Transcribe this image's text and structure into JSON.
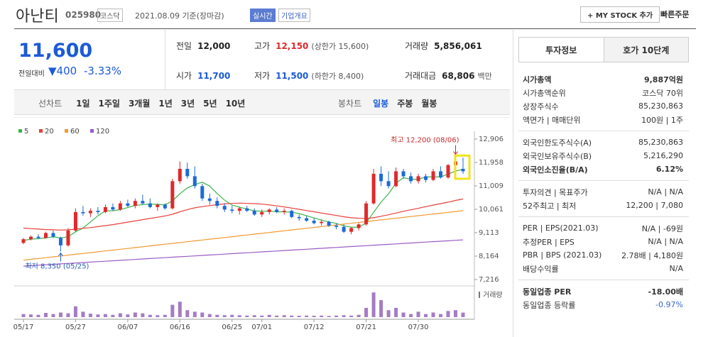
{
  "header": {
    "name": "아난티",
    "code": "025980",
    "market": "코스닥",
    "date": "2021.08.09 기준(장마감)",
    "realtime": "실시간",
    "overview": "기업개요",
    "mystock": "+ MY STOCK 추가",
    "quick_order": "빠른주문"
  },
  "price": {
    "current": "11,600",
    "change_label": "전일대비",
    "change": "▼400",
    "change_rate": "-3.33%"
  },
  "quote": {
    "rows": [
      [
        {
          "label": "전일",
          "value": "12,000"
        },
        {
          "label": "고가",
          "value": "12,150",
          "note": "(상한가 15,600)"
        },
        {
          "label": "거래량",
          "value": "5,856,061"
        }
      ],
      [
        {
          "label": "시가",
          "value": "11,700"
        },
        {
          "label": "저가",
          "value": "11,500",
          "note": "(하한가 8,400)"
        },
        {
          "label": "거래대금",
          "value": "68,806",
          "note": "백만"
        }
      ]
    ]
  },
  "period_tabs": [
    "선차트",
    "1일",
    "1주일",
    "3개월",
    "1년",
    "3년",
    "5년",
    "10년"
  ],
  "candle_tabs": [
    "봉차트",
    "일봉",
    "주봉",
    "월봉"
  ],
  "chart_data": {
    "type": "candlestick",
    "categories": [
      "05/17",
      null,
      null,
      null,
      null,
      null,
      null,
      "05/27",
      null,
      null,
      null,
      null,
      null,
      null,
      "06/07",
      null,
      null,
      null,
      null,
      null,
      null,
      "06/16",
      null,
      null,
      null,
      null,
      null,
      null,
      "06/25",
      null,
      null,
      null,
      "07/01",
      null,
      null,
      null,
      null,
      null,
      null,
      "07/12",
      null,
      null,
      null,
      null,
      null,
      null,
      "07/21",
      null,
      null,
      null,
      null,
      null,
      null,
      "07/30",
      null,
      null,
      null,
      null,
      null,
      null
    ],
    "open": [
      8700,
      8850,
      8950,
      8900,
      9100,
      8900,
      8600,
      9200,
      9950,
      9900,
      10000,
      9950,
      10150,
      10050,
      10300,
      10200,
      10400,
      10300,
      10150,
      10250,
      10100,
      11200,
      11700,
      11400,
      11000,
      10500,
      10400,
      10200,
      10050,
      10000,
      10100,
      10000,
      9850,
      9950,
      10050,
      9950,
      10000,
      9750,
      9700,
      9600,
      9500,
      9550,
      9400,
      9350,
      9150,
      9300,
      9450,
      10300,
      11500,
      11200,
      11000,
      11600,
      11400,
      11200,
      11400,
      11250,
      11600,
      11350,
      11850,
      11700
    ],
    "high": [
      8900,
      9000,
      9050,
      9150,
      9200,
      8950,
      9300,
      10100,
      10200,
      10100,
      10150,
      10250,
      10300,
      10400,
      10450,
      10500,
      10650,
      10500,
      10300,
      10300,
      11300,
      12000,
      11950,
      11800,
      11100,
      10700,
      10550,
      10300,
      10200,
      10150,
      10200,
      10100,
      10050,
      10100,
      10150,
      10100,
      10050,
      9850,
      9800,
      9700,
      9650,
      9600,
      9500,
      9450,
      9350,
      9500,
      10400,
      11700,
      11800,
      11600,
      11750,
      11700,
      11550,
      11500,
      11500,
      11700,
      11800,
      11900,
      12200,
      12150
    ],
    "low": [
      8650,
      8800,
      8850,
      8880,
      8900,
      8350,
      8550,
      9150,
      9800,
      9750,
      9850,
      9900,
      10000,
      10000,
      10150,
      10100,
      10250,
      10100,
      10000,
      10050,
      10050,
      11100,
      11300,
      10900,
      10400,
      10250,
      10100,
      9950,
      9900,
      9850,
      9950,
      9800,
      9750,
      9850,
      9900,
      9850,
      9700,
      9600,
      9550,
      9450,
      9400,
      9350,
      9250,
      9100,
      9050,
      9200,
      9400,
      10250,
      11000,
      10900,
      10950,
      11300,
      11100,
      11100,
      11150,
      11200,
      11300,
      11300,
      11800,
      11500
    ],
    "close": [
      8850,
      8950,
      8900,
      9100,
      8950,
      8600,
      9200,
      9950,
      9900,
      10000,
      9950,
      10150,
      10050,
      10300,
      10200,
      10400,
      10300,
      10150,
      10250,
      10100,
      11200,
      11700,
      11400,
      11000,
      10500,
      10400,
      10200,
      10050,
      10000,
      10100,
      10000,
      9850,
      9950,
      10050,
      9950,
      10000,
      9750,
      9700,
      9600,
      9500,
      9550,
      9400,
      9350,
      9150,
      9300,
      9450,
      10300,
      11500,
      11200,
      11000,
      11600,
      11400,
      11200,
      11400,
      11250,
      11600,
      11350,
      11850,
      12000,
      11600
    ],
    "up_color": "#e0292b",
    "down_color": "#1c6ad8",
    "ylim": [
      7216,
      12906
    ],
    "yticks": [
      {
        "value": 7216,
        "label": "7,216"
      },
      {
        "value": 8164,
        "label": "8,164"
      },
      {
        "value": 9113,
        "label": "9,113"
      },
      {
        "value": 10061,
        "label": "10,061"
      },
      {
        "value": 11009,
        "label": "11,009"
      },
      {
        "value": 11958,
        "label": "11,958"
      },
      {
        "value": 12906,
        "label": "12,906"
      }
    ],
    "series": [
      {
        "name": "5",
        "color": "#3bb54a",
        "values": [
          8800,
          8850,
          8870,
          8900,
          8950,
          8900,
          8950,
          9150,
          9300,
          9550,
          9800,
          10000,
          10000,
          10050,
          10130,
          10220,
          10250,
          10270,
          10260,
          10240,
          10400,
          10690,
          10930,
          11060,
          11160,
          11000,
          10700,
          10430,
          10230,
          10150,
          10070,
          10000,
          9980,
          9990,
          9960,
          9960,
          9940,
          9890,
          9800,
          9710,
          9620,
          9550,
          9490,
          9390,
          9340,
          9330,
          9510,
          9940,
          10350,
          10690,
          11120,
          11340,
          11280,
          11280,
          11370,
          11370,
          11370,
          11490,
          11610,
          11680
        ]
      },
      {
        "name": "20",
        "color": "#e8413c",
        "values": [
          9300,
          9280,
          9260,
          9240,
          9230,
          9220,
          9230,
          9260,
          9290,
          9320,
          9360,
          9400,
          9440,
          9490,
          9540,
          9590,
          9640,
          9690,
          9740,
          9790,
          9860,
          9960,
          10050,
          10120,
          10170,
          10210,
          10250,
          10280,
          10300,
          10310,
          10300,
          10290,
          10270,
          10240,
          10200,
          10160,
          10110,
          10060,
          10010,
          9960,
          9910,
          9860,
          9810,
          9760,
          9720,
          9700,
          9690,
          9720,
          9780,
          9840,
          9910,
          9980,
          10040,
          10100,
          10170,
          10230,
          10290,
          10350,
          10420,
          10480
        ]
      },
      {
        "name": "60",
        "color": "#f39a2e",
        "values": [
          8000,
          8034,
          8068,
          8102,
          8136,
          8170,
          8204,
          8238,
          8272,
          8306,
          8340,
          8374,
          8408,
          8442,
          8476,
          8510,
          8544,
          8578,
          8612,
          8646,
          8680,
          8714,
          8748,
          8782,
          8816,
          8850,
          8884,
          8918,
          8952,
          8986,
          9020,
          9054,
          9088,
          9122,
          9156,
          9190,
          9224,
          9258,
          9292,
          9326,
          9360,
          9394,
          9428,
          9462,
          9496,
          9530,
          9564,
          9598,
          9632,
          9666,
          9700,
          9734,
          9768,
          9802,
          9836,
          9870,
          9904,
          9938,
          9972,
          10006
        ]
      },
      {
        "name": "120",
        "color": "#9b5cc4",
        "values": [
          7760,
          7778,
          7796,
          7814,
          7832,
          7850,
          7868,
          7886,
          7904,
          7922,
          7940,
          7958,
          7976,
          7994,
          8012,
          8030,
          8048,
          8066,
          8084,
          8102,
          8120,
          8138,
          8156,
          8174,
          8192,
          8210,
          8228,
          8246,
          8264,
          8282,
          8300,
          8318,
          8336,
          8354,
          8372,
          8390,
          8408,
          8426,
          8444,
          8462,
          8480,
          8498,
          8516,
          8534,
          8552,
          8570,
          8588,
          8606,
          8624,
          8642,
          8660,
          8678,
          8696,
          8714,
          8732,
          8750,
          8768,
          8786,
          8804,
          8822
        ]
      }
    ],
    "volume": {
      "name": "거래량",
      "color": "#a57cc4",
      "ylim": [
        0,
        34000000
      ],
      "values": [
        4000000,
        3500000,
        3000000,
        5500000,
        4000000,
        6000000,
        5000000,
        14000000,
        7000000,
        4500000,
        3500000,
        4000000,
        3000000,
        5000000,
        3500000,
        6000000,
        5000000,
        3000000,
        2500000,
        3000000,
        16000000,
        20000000,
        9000000,
        7000000,
        6000000,
        4000000,
        3000000,
        2500000,
        3000000,
        2500000,
        2000000,
        2500000,
        2000000,
        3000000,
        2000000,
        2500000,
        2000000,
        1800000,
        2000000,
        1800000,
        2000000,
        1500000,
        2000000,
        2500000,
        2000000,
        3000000,
        12000000,
        32000000,
        22000000,
        9000000,
        12000000,
        6000000,
        4000000,
        7000000,
        4000000,
        6000000,
        4000000,
        8000000,
        9000000,
        5856061
      ]
    },
    "annotations": {
      "high": "최고 12,200 (08/06)",
      "low": "최저 8,350 (05/25)"
    }
  },
  "info_panel": {
    "tabs": [
      "투자정보",
      "호가 10단계"
    ],
    "groups": [
      [
        {
          "label": "시가총액",
          "value": "9,887억원",
          "bold": true
        },
        {
          "label": "시가총액순위",
          "value": "코스닥 70위"
        },
        {
          "label": "상장주식수",
          "value": "85,230,863"
        },
        {
          "label": "액면가 | 매매단위",
          "value": "100원 | 1주"
        }
      ],
      [
        {
          "label": "외국인한도주식수(A)",
          "value": "85,230,863"
        },
        {
          "label": "외국인보유주식수(B)",
          "value": "5,216,290"
        },
        {
          "label": "외국인소진율(B/A)",
          "value": "6.12%",
          "bold": true
        }
      ],
      [
        {
          "label": "투자의견 | 목표주가",
          "value": "N/A | N/A"
        },
        {
          "label": "52주최고 | 최저",
          "value": "12,200 | 7,080"
        }
      ],
      [
        {
          "label": "PER | EPS(2021.03)",
          "value": "N/A | -69원"
        },
        {
          "label": "추정PER | EPS",
          "value": "N/A | N/A"
        },
        {
          "label": "PBR | BPS (2021.03)",
          "value": "2.78배 | 4,180원"
        },
        {
          "label": "배당수익률",
          "value": "N/A"
        }
      ],
      [
        {
          "label": "동일업종 PER",
          "value": "-18.00배",
          "bold": true
        },
        {
          "label": "동일업종 등락률",
          "value": "-0.97%",
          "blue": true
        }
      ]
    ]
  }
}
